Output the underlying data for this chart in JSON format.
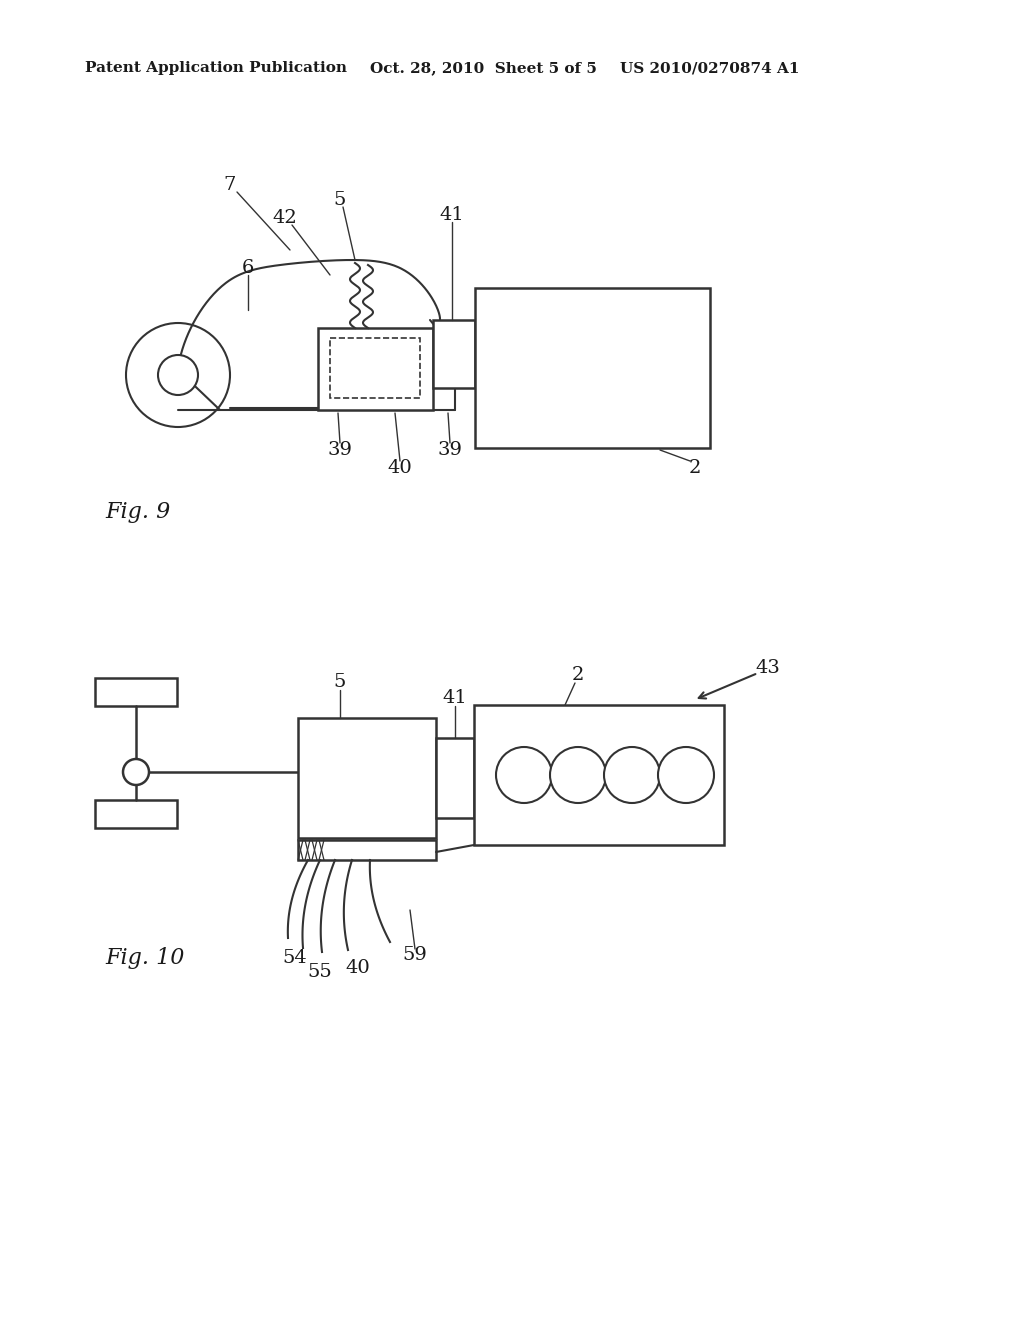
{
  "bg_color": "#ffffff",
  "header_left": "Patent Application Publication",
  "header_mid": "Oct. 28, 2010  Sheet 5 of 5",
  "header_right": "US 2010/0270874 A1",
  "fig9_label": "Fig. 9",
  "fig10_label": "Fig. 10",
  "text_color": "#1a1a1a",
  "line_color": "#333333",
  "label_fontsize": 14,
  "header_fontsize": 11
}
